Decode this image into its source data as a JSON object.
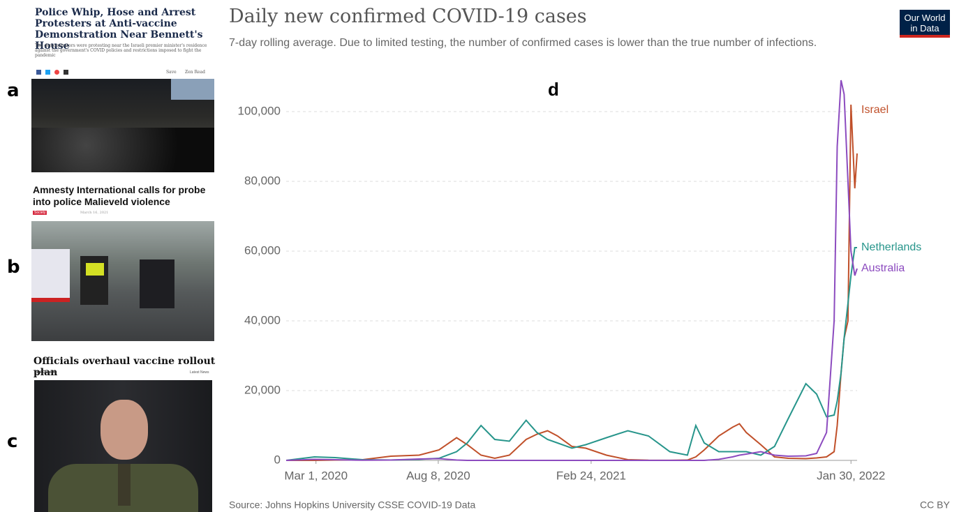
{
  "panels": [
    {
      "letter": "a",
      "headline": "Police Whip, Hose and Arrest Protesters at Anti-vaccine Demonstration Near Bennett's House",
      "summary": "The demonstrators were protesting near the Israeli premier minister's residence against the government's COVID policies and restrictions imposed to fight the pandemic",
      "toolbar": [
        "Save",
        "Zen Read"
      ]
    },
    {
      "letter": "b",
      "headline": "Amnesty International calls for probe into police Malieveld violence",
      "tag": "Society",
      "date": "March 16, 2021"
    },
    {
      "letter": "c",
      "headline": "Officials overhaul vaccine rollout plan",
      "byline": "Paul Osborne",
      "section": "Latest News"
    }
  ],
  "chart_data": {
    "type": "line",
    "label": "d",
    "title": "Daily new confirmed COVID-19 cases",
    "subtitle": "7-day rolling average. Due to limited testing, the number of confirmed cases is lower than the true number of infections.",
    "source": "Source: Johns Hopkins University CSSE COVID-19 Data",
    "license": "CC BY",
    "logo": "Our World in Data",
    "x": [
      "2020-01-22",
      "2020-02-28",
      "2020-03-26",
      "2020-05-01",
      "2020-06-07",
      "2020-07-14",
      "2020-08-09",
      "2020-09-01",
      "2020-09-15",
      "2020-10-03",
      "2020-10-21",
      "2020-11-09",
      "2020-12-01",
      "2020-12-15",
      "2020-12-29",
      "2021-01-11",
      "2021-01-30",
      "2021-02-17",
      "2021-03-16",
      "2021-04-13",
      "2021-05-10",
      "2021-06-07",
      "2021-06-30",
      "2021-07-11",
      "2021-07-22",
      "2021-08-10",
      "2021-08-28",
      "2021-09-06",
      "2021-09-15",
      "2021-10-04",
      "2021-10-22",
      "2021-11-09",
      "2021-12-02",
      "2021-12-16",
      "2021-12-29",
      "2022-01-08",
      "2022-01-12",
      "2022-01-17",
      "2022-01-21",
      "2022-01-26",
      "2022-01-30",
      "2022-02-04",
      "2022-02-07"
    ],
    "series": [
      {
        "name": "Israel",
        "color": "#c0502a",
        "values": [
          0,
          0,
          100,
          200,
          1200,
          1500,
          3000,
          6500,
          4500,
          1500,
          600,
          1500,
          6000,
          7500,
          8500,
          7000,
          4000,
          3500,
          1500,
          200,
          50,
          20,
          100,
          1000,
          3000,
          7000,
          9500,
          10500,
          8000,
          4500,
          1000,
          600,
          500,
          700,
          1000,
          2500,
          10000,
          25000,
          35000,
          40000,
          102000,
          78000,
          88000
        ]
      },
      {
        "name": "Netherlands",
        "color": "#27958b",
        "values": [
          0,
          1000,
          800,
          200,
          100,
          300,
          600,
          2500,
          5000,
          10000,
          6000,
          5500,
          11500,
          8000,
          6000,
          5000,
          3500,
          4500,
          6500,
          8500,
          7000,
          2500,
          1500,
          10000,
          5000,
          2500,
          2500,
          2500,
          2500,
          1500,
          4000,
          12000,
          22000,
          19000,
          12500,
          13000,
          17000,
          25000,
          35000,
          45000,
          53000,
          61000,
          61000
        ]
      },
      {
        "name": "Australia",
        "color": "#8c4bbf",
        "values": [
          0,
          300,
          200,
          50,
          100,
          400,
          500,
          100,
          0,
          0,
          0,
          0,
          0,
          0,
          0,
          0,
          0,
          0,
          0,
          0,
          0,
          0,
          0,
          0,
          0,
          300,
          1000,
          1500,
          1800,
          2500,
          1500,
          1200,
          1300,
          2000,
          8000,
          40000,
          90000,
          109000,
          105000,
          80000,
          60000,
          53000,
          55000
        ]
      }
    ],
    "xlim": [
      "2020-01-22",
      "2022-02-07"
    ],
    "xticks": [
      {
        "value": "2020-03-01",
        "label": "Mar 1, 2020"
      },
      {
        "value": "2020-08-08",
        "label": "Aug 8, 2020"
      },
      {
        "value": "2021-02-24",
        "label": "Feb 24, 2021"
      },
      {
        "value": "2022-01-30",
        "label": "Jan 30, 2022"
      }
    ],
    "ylim": [
      0,
      110000
    ],
    "yticks": [
      0,
      {
        "value": 20000,
        "label": "20,000"
      },
      {
        "value": 40000,
        "label": "40,000"
      },
      {
        "value": 60000,
        "label": "60,000"
      },
      {
        "value": 80000,
        "label": "80,000"
      },
      {
        "value": 100000,
        "label": "100,000"
      }
    ],
    "grid": true
  }
}
